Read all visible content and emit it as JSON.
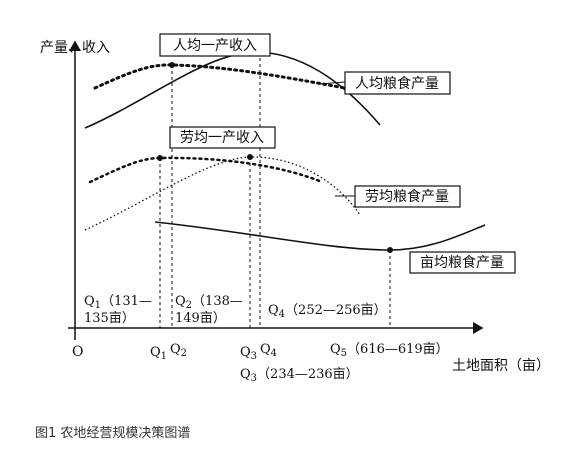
{
  "diagram": {
    "y_axis_label": "产量、收入",
    "x_axis_label": "土地面积（亩）",
    "origin": "O",
    "curves": {
      "per_capita_income": "人均一产收入",
      "per_capita_grain": "人均粮食产量",
      "per_labor_income": "劳均一产收入",
      "per_labor_grain": "劳均粮食产量",
      "per_mu_grain": "亩均粮食产量"
    },
    "points": [
      {
        "main": "Q",
        "sub": "1",
        "rest": "（131—",
        "line2": "135亩）"
      },
      {
        "main": "Q",
        "sub": "2",
        "rest": "（138—",
        "line2": "149亩）"
      },
      {
        "main": "Q",
        "sub": "3",
        "rest": "（234—236亩）"
      },
      {
        "main": "Q",
        "sub": "4",
        "rest": "（252—256亩）"
      },
      {
        "main": "Q",
        "sub": "5",
        "rest": "（616—619亩）"
      }
    ],
    "caption": "图1 农地经营规模决策图谱"
  }
}
